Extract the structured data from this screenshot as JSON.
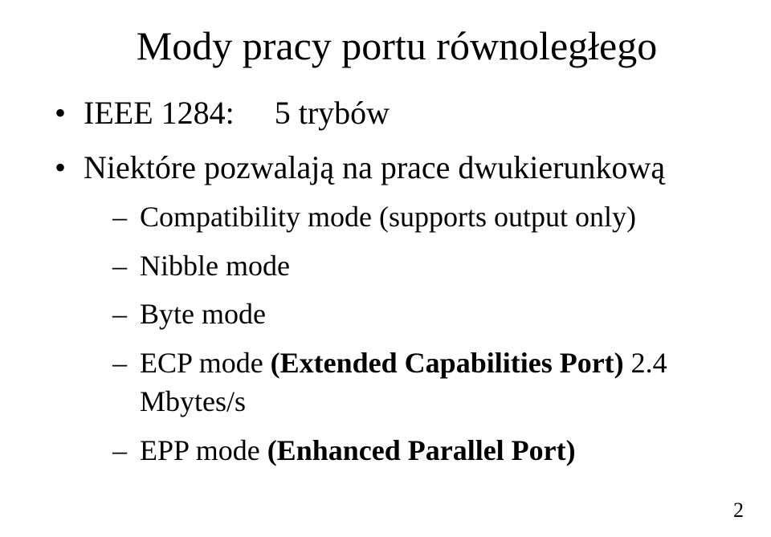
{
  "title": "Mody pracy portu równoległego",
  "bullets": [
    {
      "text_before": "IEEE 1284:",
      "text_after": "5 trybów"
    },
    {
      "text": "Niektóre pozwalają na prace dwukierunkową"
    }
  ],
  "sub_bullets": [
    {
      "text": "Compatibility mode (supports output only)"
    },
    {
      "text": "Nibble mode"
    },
    {
      "text": "Byte mode"
    },
    {
      "prefix": "ECP mode ",
      "bold": "(Extended Capabilities Port)",
      "suffix": " 2.4 Mbytes/s"
    },
    {
      "prefix": "EPP mode ",
      "bold": "(Enhanced Parallel Port)",
      "suffix": ""
    }
  ],
  "page_number": "2"
}
